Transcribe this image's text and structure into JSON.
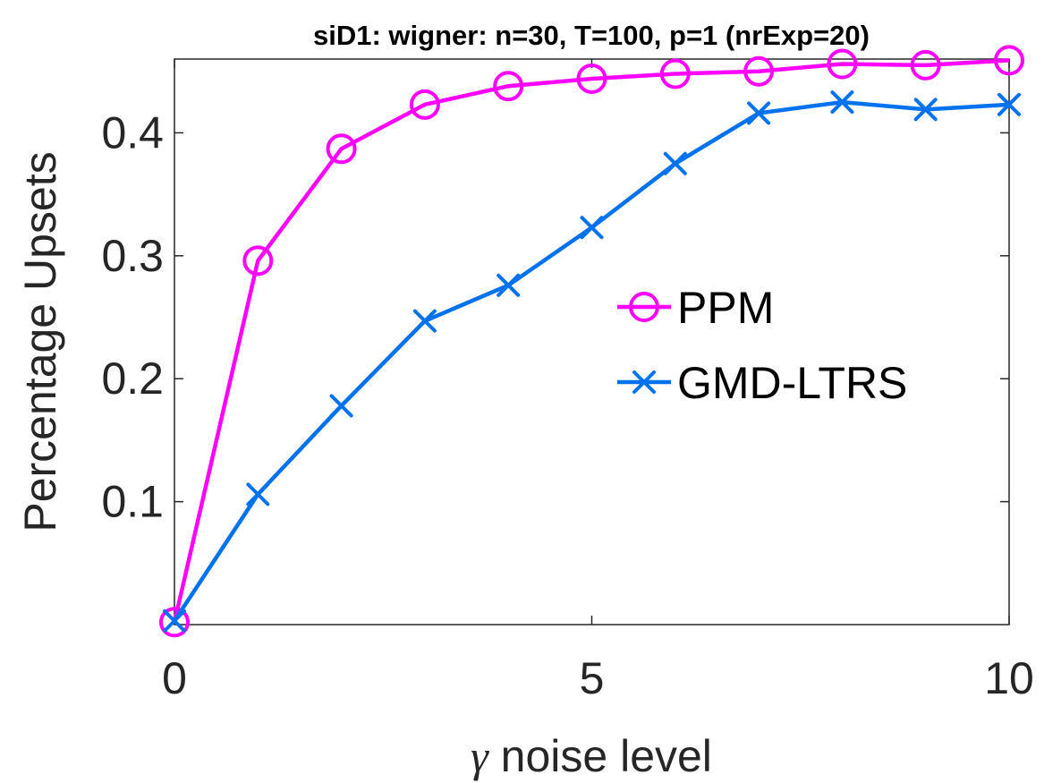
{
  "chart_data": {
    "type": "line",
    "title": "siD1: wigner: n=30, T=100, p=1 (nrExp=20)",
    "xlabel_symbol": "γ",
    "xlabel_text": " noise level",
    "ylabel": "Percentage Upsets",
    "xlim": [
      0,
      10
    ],
    "ylim": [
      0,
      0.46
    ],
    "xticks": [
      0,
      5,
      10
    ],
    "yticks": [
      0.1,
      0.2,
      0.3,
      0.4
    ],
    "grid": false,
    "legend_position": "right",
    "x": [
      0,
      1,
      2,
      3,
      4,
      5,
      6,
      7,
      8,
      9,
      10
    ],
    "series": [
      {
        "name": "PPM",
        "color": "#ff00ff",
        "marker": "circle",
        "values": [
          0.002,
          0.296,
          0.387,
          0.423,
          0.438,
          0.444,
          0.448,
          0.45,
          0.456,
          0.455,
          0.459
        ]
      },
      {
        "name": "GMD-LTRS",
        "color": "#0072ee",
        "marker": "x",
        "values": [
          0.003,
          0.106,
          0.178,
          0.247,
          0.276,
          0.323,
          0.375,
          0.416,
          0.425,
          0.419,
          0.423
        ]
      }
    ]
  }
}
